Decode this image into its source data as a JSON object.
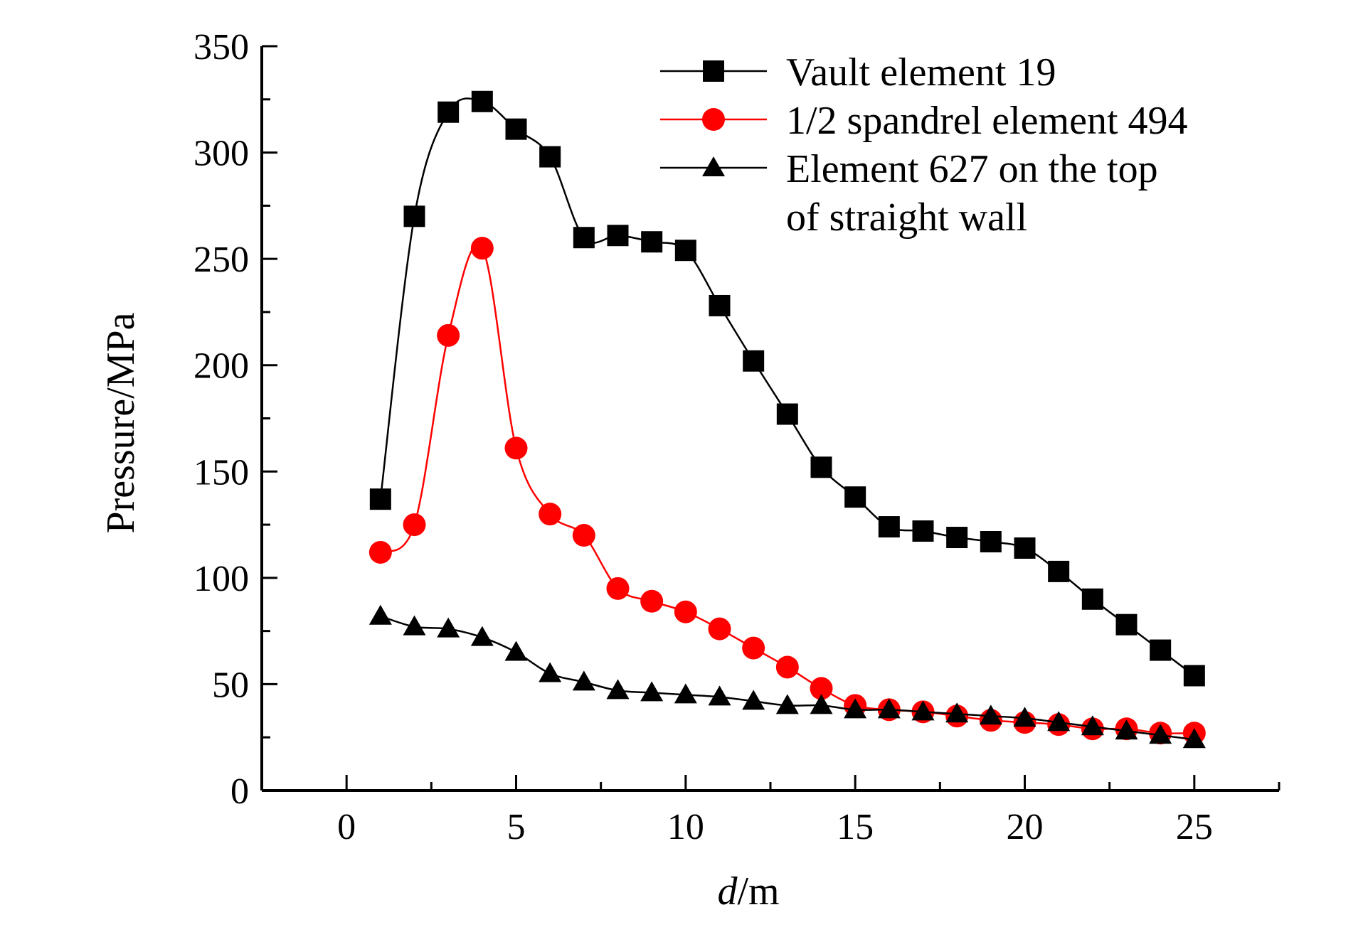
{
  "chart_data": {
    "type": "line",
    "xlabel_italic": "d",
    "xlabel_unit": "/m",
    "ylabel": "Pressure/MPa",
    "xlim": [
      -2.5,
      27.5
    ],
    "ylim": [
      0,
      350
    ],
    "xticks": [
      0,
      5,
      10,
      15,
      20,
      25
    ],
    "yticks": [
      0,
      50,
      100,
      150,
      200,
      250,
      300,
      350
    ],
    "grid": false,
    "legend_position": "top-right",
    "x": [
      1,
      2,
      3,
      4,
      5,
      6,
      7,
      8,
      9,
      10,
      11,
      12,
      13,
      14,
      15,
      16,
      17,
      18,
      19,
      20,
      21,
      22,
      23,
      24,
      25
    ],
    "series": [
      {
        "name": "Vault element 19",
        "legend_lines": [
          "Vault element 19"
        ],
        "color": "#000000",
        "marker": "square",
        "values": [
          137,
          270,
          319,
          324,
          311,
          298,
          260,
          261,
          258,
          254,
          228,
          202,
          177,
          152,
          138,
          124,
          122,
          119,
          117,
          114,
          103,
          90,
          78,
          66,
          54
        ]
      },
      {
        "name": "1/2 spandrel element 494",
        "legend_lines": [
          "1/2 spandrel element 494"
        ],
        "color": "#ff0000",
        "marker": "circle",
        "values": [
          112,
          125,
          214,
          255,
          161,
          130,
          120,
          95,
          89,
          84,
          76,
          67,
          58,
          48,
          40,
          38,
          37,
          35,
          33,
          32,
          31,
          29,
          29,
          27,
          27
        ]
      },
      {
        "name": "Element 627 on the top of straight wall",
        "legend_lines": [
          "Element 627 on the top",
          "of straight wall"
        ],
        "color": "#000000",
        "marker": "triangle",
        "values": [
          82,
          77,
          76,
          72,
          65,
          55,
          51,
          47,
          46,
          45,
          44,
          42,
          40,
          40,
          38,
          38,
          37,
          36,
          35,
          34,
          32,
          30,
          28,
          26,
          24
        ]
      }
    ]
  }
}
